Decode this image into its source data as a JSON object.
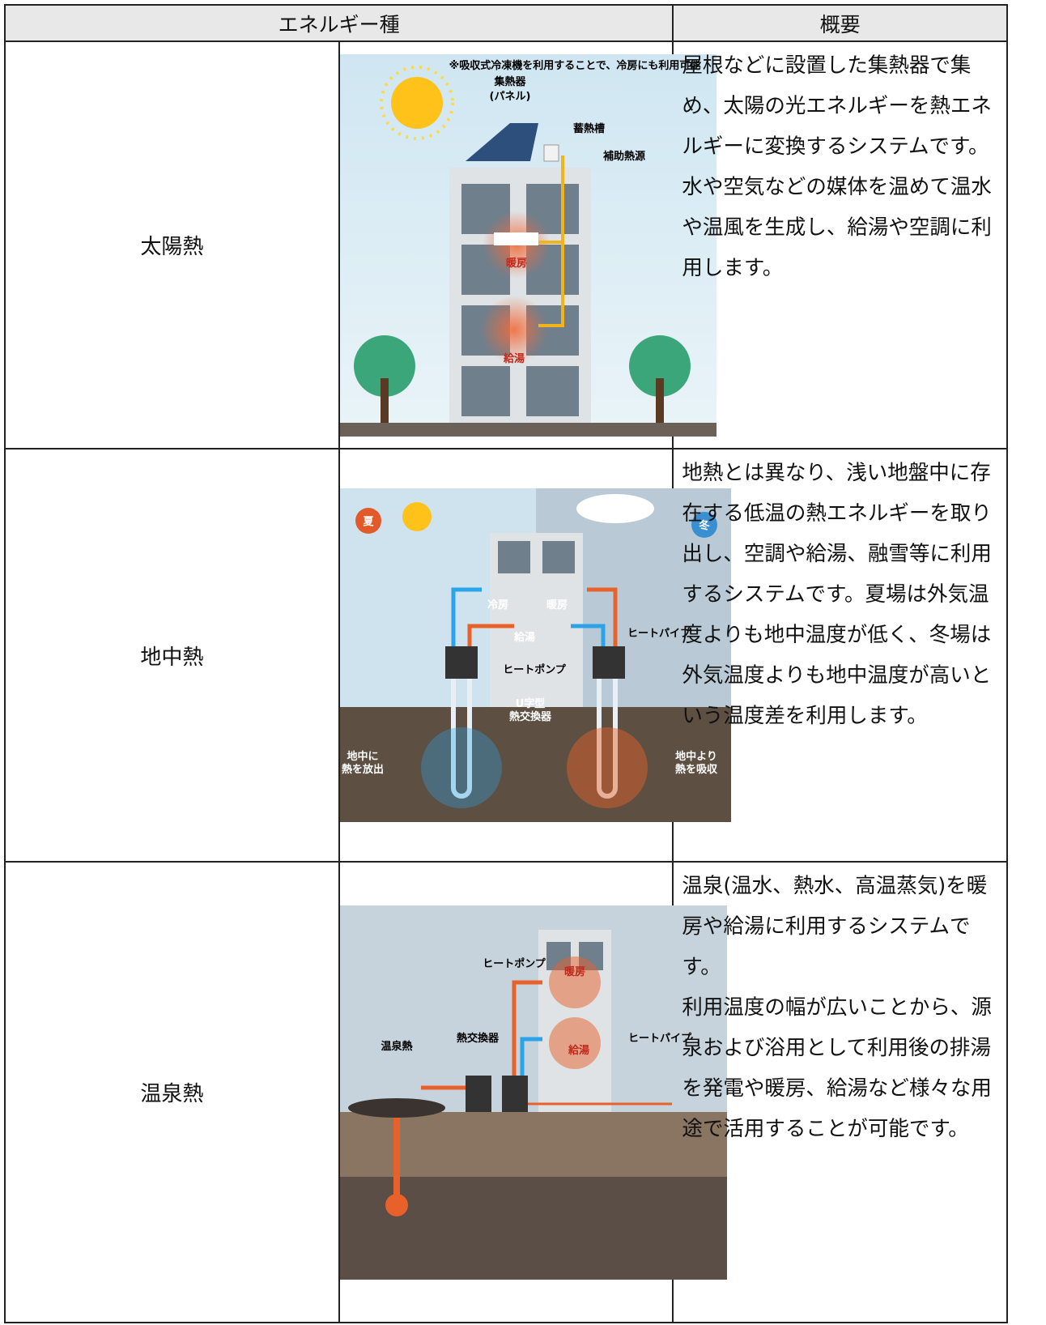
{
  "table": {
    "header": [
      "エネルギー種",
      "概要"
    ],
    "rows": [
      {
        "name": "太陽熱",
        "image": {
          "labels": [
            "※吸収式冷凍機を利用することで、冷房にも利用可能",
            "集熱器",
            "(パネル)",
            "蓄熱槽",
            "補助熱源",
            "暖房",
            "給湯"
          ]
        },
        "description": [
          "屋根などに設置した集熱器で集め、太陽の光エネルギーを熱エネルギーに変換するシステムです。",
          "水や空気などの媒体を温めて温水や温風を生成し、給湯や空調に利用します。"
        ]
      },
      {
        "name": "地中熱",
        "image": {
          "labels": [
            "夏",
            "冬",
            "冷房",
            "暖房",
            "給湯",
            "ヒートパイプ",
            "ヒートポンプ",
            "U字型",
            "熱交換器",
            "地中に",
            "熱を放出",
            "地中より",
            "熱を吸収"
          ]
        },
        "description": [
          "地熱とは異なり、浅い地盤中に存在する低温の熱エネルギーを取り出し、空調や給湯、融雪等に利用するシステムです。夏場は外気温度よりも地中温度が低く、冬場は外気温度よりも地中温度が高いという温度差を利用します。"
        ]
      },
      {
        "name": "温泉熱",
        "image": {
          "labels": [
            "ヒートポンプ",
            "暖房",
            "熱交換器",
            "給湯",
            "ヒートパイプ",
            "温泉熱"
          ]
        },
        "description": [
          "温泉(温水、熱水、高温蒸気)を暖房や給湯に利用するシステムです。",
          "利用温度の幅が広いことから、源泉および浴用として利用後の排湯を発電や暖房、給湯など様々な用途で活用することが可能です。"
        ]
      }
    ]
  }
}
